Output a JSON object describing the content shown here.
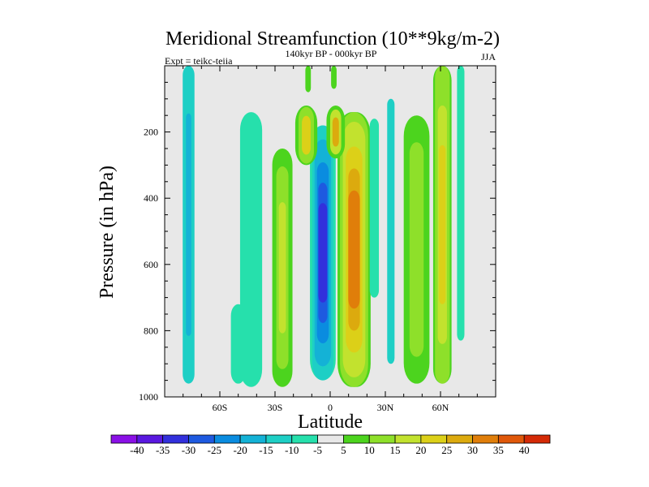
{
  "chart_data": {
    "type": "contour",
    "title": "Meridional Streamfunction (10**9kg/m-2)",
    "subtitle": "140kyr BP - 000kyr BP",
    "left_label": "Expt = teikc-teiia",
    "right_label": "JJA",
    "xlabel": "Latitude",
    "ylabel": "Pressure (in hPa)",
    "x_range": [
      -90,
      90
    ],
    "y_range": [
      0,
      1000
    ],
    "y_reversed": true,
    "x_ticks": [
      {
        "value": -60,
        "label": "60S"
      },
      {
        "value": -30,
        "label": "30S"
      },
      {
        "value": 0,
        "label": "0"
      },
      {
        "value": 30,
        "label": "30N"
      },
      {
        "value": 60,
        "label": "60N"
      }
    ],
    "y_ticks": [
      {
        "value": 200,
        "label": "200"
      },
      {
        "value": 400,
        "label": "400"
      },
      {
        "value": 600,
        "label": "600"
      },
      {
        "value": 800,
        "label": "800"
      },
      {
        "value": 1000,
        "label": "1000"
      }
    ],
    "colorbar": {
      "labels": [
        "-40",
        "-35",
        "-30",
        "-25",
        "-20",
        "-15",
        "-10",
        "-5",
        "5",
        "10",
        "15",
        "20",
        "25",
        "30",
        "35",
        "40"
      ],
      "colors": [
        "#8a10e6",
        "#5a18e0",
        "#3230dc",
        "#1e5ae0",
        "#0a8ce0",
        "#14b2d6",
        "#1ecfc5",
        "#26e0ac",
        "#e8e8e8",
        "#4cd41e",
        "#8ee02a",
        "#c2e22e",
        "#dcd018",
        "#dcaa0e",
        "#e07e0a",
        "#e0580a",
        "#d42a06"
      ]
    },
    "bands": [
      {
        "name": "band-75s",
        "cx": -77,
        "hw": 3.2,
        "ytop": 0,
        "ybot": 960,
        "layers": [
          {
            "color": "#1ecfc5",
            "scale": 1
          },
          {
            "color": "#14b2d6",
            "scale": 0.45
          }
        ]
      },
      {
        "name": "band-50s-shallow",
        "cx": -50,
        "hw": 4,
        "ytop": 720,
        "ybot": 960,
        "layers": [
          {
            "color": "#26e0ac",
            "scale": 1
          }
        ]
      },
      {
        "name": "band-42s",
        "cx": -43,
        "hw": 6,
        "ytop": 140,
        "ybot": 970,
        "layers": [
          {
            "color": "#26e0ac",
            "scale": 1
          }
        ]
      },
      {
        "name": "band-25s",
        "cx": -26,
        "hw": 5.5,
        "ytop": 250,
        "ybot": 970,
        "layers": [
          {
            "color": "#4cd41e",
            "scale": 1
          },
          {
            "color": "#8ee02a",
            "scale": 0.6
          },
          {
            "color": "#c2e22e",
            "scale": 0.3
          }
        ]
      },
      {
        "name": "band-5s-negative",
        "cx": -4,
        "hw": 7,
        "ytop": 180,
        "ybot": 950,
        "layers": [
          {
            "color": "#26e0ac",
            "scale": 1
          },
          {
            "color": "#1ecfc5",
            "scale": 0.82
          },
          {
            "color": "#14b2d6",
            "scale": 0.64
          },
          {
            "color": "#0a8ce0",
            "scale": 0.46
          },
          {
            "color": "#1e5ae0",
            "scale": 0.3
          },
          {
            "color": "#3230dc",
            "scale": 0.14
          }
        ]
      },
      {
        "name": "band-15s-upper",
        "cx": -13,
        "hw": 6,
        "ytop": 120,
        "ybot": 300,
        "layers": [
          {
            "color": "#4cd41e",
            "scale": 1
          },
          {
            "color": "#8ee02a",
            "scale": 0.7
          },
          {
            "color": "#dcd018",
            "scale": 0.4
          }
        ]
      },
      {
        "name": "band-15n-positive",
        "cx": 13,
        "hw": 9,
        "ytop": 140,
        "ybot": 970,
        "layers": [
          {
            "color": "#4cd41e",
            "scale": 1
          },
          {
            "color": "#8ee02a",
            "scale": 0.85
          },
          {
            "color": "#c2e22e",
            "scale": 0.68
          },
          {
            "color": "#dcd018",
            "scale": 0.5
          },
          {
            "color": "#dcaa0e",
            "scale": 0.34
          },
          {
            "color": "#e07e0a",
            "scale": 0.18
          }
        ]
      },
      {
        "name": "band-0-upper",
        "cx": 3,
        "hw": 5,
        "ytop": 120,
        "ybot": 280,
        "layers": [
          {
            "color": "#4cd41e",
            "scale": 1
          },
          {
            "color": "#c2e22e",
            "scale": 0.6
          },
          {
            "color": "#dcaa0e",
            "scale": 0.3
          }
        ]
      },
      {
        "name": "band-25n",
        "cx": 24,
        "hw": 2.5,
        "ytop": 160,
        "ybot": 700,
        "layers": [
          {
            "color": "#26e0ac",
            "scale": 1
          }
        ]
      },
      {
        "name": "band-33n",
        "cx": 33,
        "hw": 2,
        "ytop": 100,
        "ybot": 900,
        "layers": [
          {
            "color": "#1ecfc5",
            "scale": 1
          }
        ]
      },
      {
        "name": "band-45n",
        "cx": 47,
        "hw": 7,
        "ytop": 150,
        "ybot": 960,
        "layers": [
          {
            "color": "#4cd41e",
            "scale": 1
          },
          {
            "color": "#8ee02a",
            "scale": 0.55
          }
        ]
      },
      {
        "name": "band-60n",
        "cx": 61,
        "hw": 5,
        "ytop": 0,
        "ybot": 960,
        "layers": [
          {
            "color": "#4cd41e",
            "scale": 1
          },
          {
            "color": "#8ee02a",
            "scale": 0.8
          },
          {
            "color": "#c2e22e",
            "scale": 0.5
          },
          {
            "color": "#dcd018",
            "scale": 0.25
          }
        ]
      },
      {
        "name": "band-71n",
        "cx": 71,
        "hw": 2,
        "ytop": 0,
        "ybot": 830,
        "layers": [
          {
            "color": "#26e0ac",
            "scale": 1
          }
        ]
      },
      {
        "name": "band-top-0",
        "cx": -12,
        "hw": 1.5,
        "ytop": 0,
        "ybot": 80,
        "layers": [
          {
            "color": "#4cd41e",
            "scale": 1
          }
        ]
      },
      {
        "name": "band-top-1",
        "cx": 2,
        "hw": 1.5,
        "ytop": 0,
        "ybot": 70,
        "layers": [
          {
            "color": "#4cd41e",
            "scale": 1
          }
        ]
      }
    ]
  }
}
